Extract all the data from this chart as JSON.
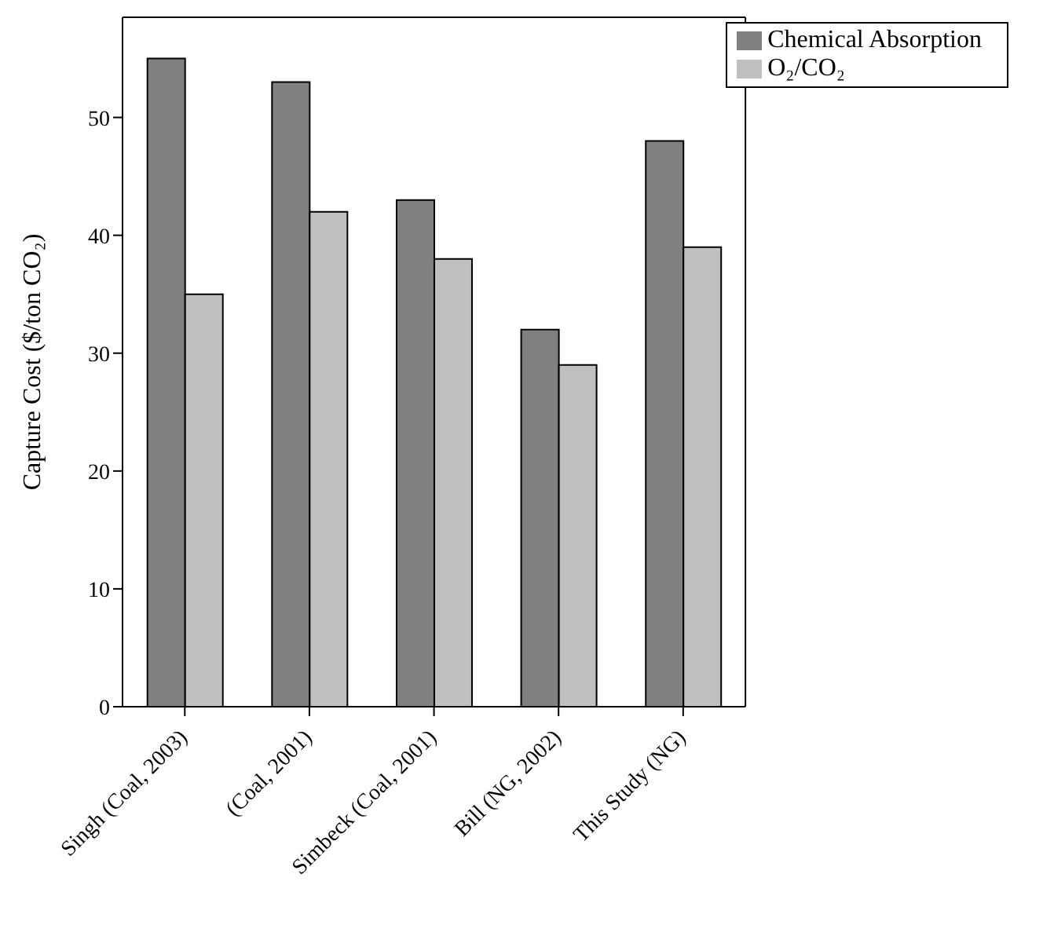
{
  "chart_data": {
    "type": "bar",
    "ylabel": "Capture Cost ($/ton CO₂)",
    "categories": [
      "Singh (Coal, 2003)",
      "(Coal, 2001)",
      "Simbeck (Coal, 2001)",
      "Bill (NG, 2002)",
      "This Study (NG)"
    ],
    "series": [
      {
        "name": "Chemical Absorption",
        "color": "#808080",
        "values": [
          55,
          53,
          43,
          32,
          48
        ]
      },
      {
        "name": "O₂/CO₂",
        "color": "#c0c0c0",
        "values": [
          35,
          42,
          38,
          29,
          39
        ]
      }
    ],
    "ylim": [
      0,
      58.5
    ],
    "yticks": [
      0,
      10,
      20,
      30,
      40,
      50
    ],
    "grid": false,
    "legend": "top right"
  }
}
